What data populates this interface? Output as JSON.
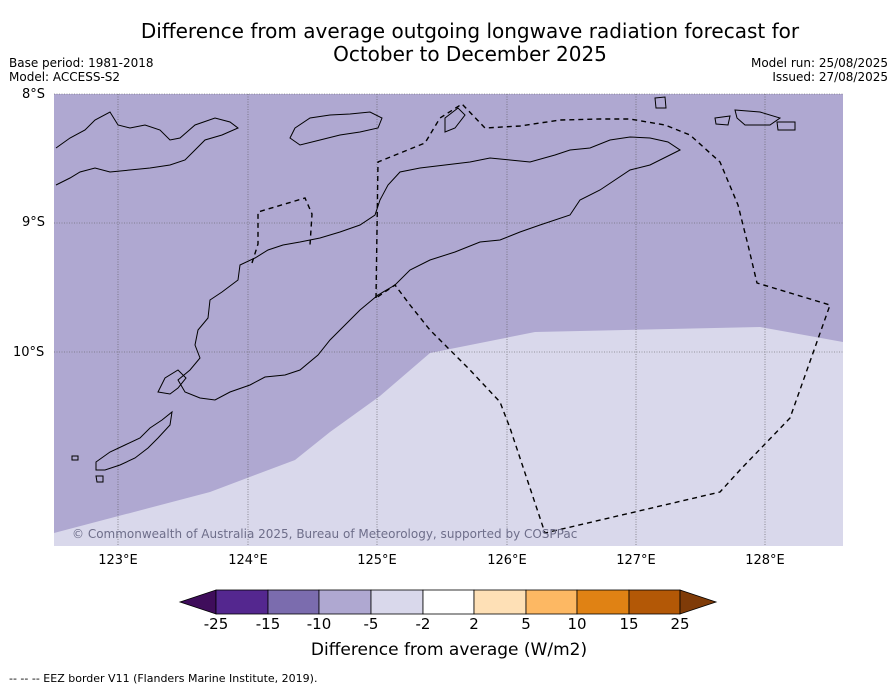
{
  "title_line1": "Difference from average outgoing longwave radiation forecast for",
  "title_line2": "October to December 2025",
  "base_period": "Base period: 1981-2018",
  "model": "Model: ACCESS-S2",
  "model_run": "Model run: 25/08/2025",
  "issued": "Issued: 27/08/2025",
  "copyright": "© Commonwealth of Australia 2025, Bureau of Meteorology, supported by COSPPac",
  "lat_labels": [
    "8°S",
    "9°S",
    "10°S"
  ],
  "lon_labels": [
    "123°E",
    "124°E",
    "125°E",
    "126°E",
    "127°E",
    "128°E"
  ],
  "legend": {
    "title": "Difference from average (W/m2)",
    "ticks": [
      "-25",
      "-15",
      "-10",
      "-5",
      "-2",
      "2",
      "5",
      "10",
      "15",
      "25"
    ],
    "colors": [
      "#3f0d5b",
      "#54278f",
      "#7b6cae",
      "#afa8d1",
      "#d9d8eb",
      "#ffffff",
      "#fee0b6",
      "#fdb863",
      "#e08214",
      "#b35806",
      "#7f3b08"
    ]
  },
  "map_colors": {
    "band_minus10_minus5": "#afa8d1",
    "band_minus5_minus2": "#d9d8eb"
  },
  "footnote": "-- -- -- EEZ border V11 (Flanders Marine Institute, 2019)."
}
